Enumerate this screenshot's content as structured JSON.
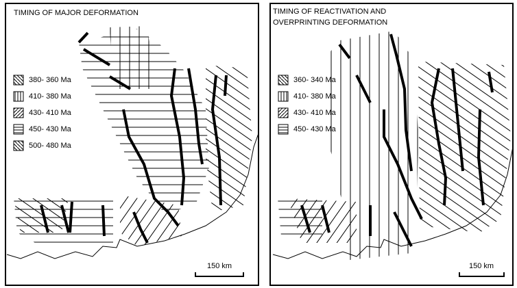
{
  "panels": [
    {
      "title_lines": [
        "TIMING OF MAJOR DEFORMATION"
      ],
      "legend": [
        "380- 360 Ma",
        "410- 380 Ma",
        "430- 410 Ma",
        "450- 430 Ma",
        "500- 480 Ma"
      ],
      "scale": "150 km"
    },
    {
      "title_lines": [
        "TIMING OF REACTIVATION AND",
        "OVERPRINTING DEFORMATION"
      ],
      "legend": [
        "360- 340 Ma",
        "410- 380 Ma",
        "430- 410 Ma",
        "450- 430 Ma"
      ],
      "scale": "150 km"
    }
  ]
}
